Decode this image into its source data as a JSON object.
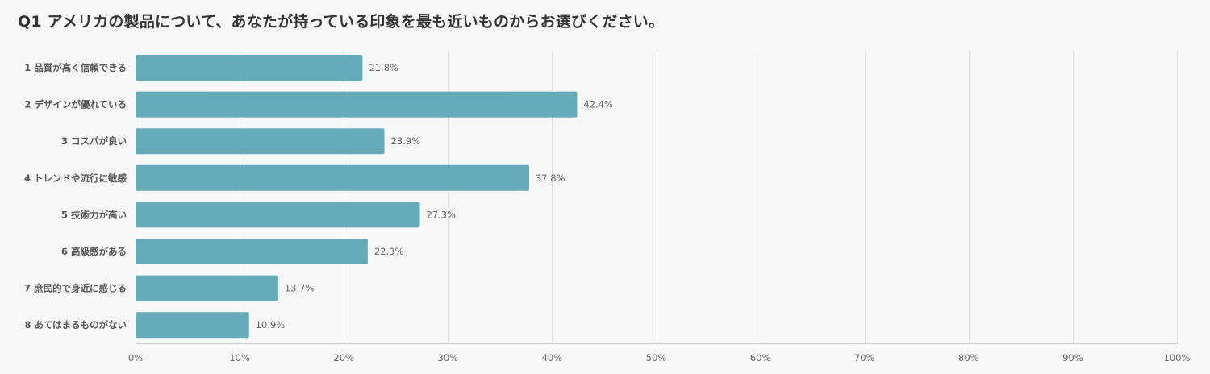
{
  "title": "Q1 アメリカの製品について、あなたが持っている印象を最も近いものからお選びください。",
  "colors": {
    "background": "#f8f8f8",
    "bar": "#65abba",
    "grid": "#e2e2e2",
    "axis": "#cccccc"
  },
  "chart_data": {
    "type": "bar",
    "orientation": "horizontal",
    "title": "Q1 アメリカの製品について、あなたが持っている印象を最も近いものからお選びください。",
    "categories": [
      "1 品質が高く信頼できる",
      "2 デザインが優れている",
      "3 コスパが良い",
      "4 トレンドや流行に敏感",
      "5 技術力が高い",
      "6 高級感がある",
      "7 庶民的で身近に感じる",
      "8 あてはまるものがない"
    ],
    "values": [
      21.8,
      42.4,
      23.9,
      37.8,
      27.3,
      22.3,
      13.7,
      10.9
    ],
    "value_labels": [
      "21.8%",
      "42.4%",
      "23.9%",
      "37.8%",
      "27.3%",
      "22.3%",
      "13.7%",
      "10.9%"
    ],
    "xlim": [
      0,
      100
    ],
    "x_ticks": [
      0,
      10,
      20,
      30,
      40,
      50,
      60,
      70,
      80,
      90,
      100
    ],
    "x_tick_labels": [
      "0%",
      "10%",
      "20%",
      "30%",
      "40%",
      "50%",
      "60%",
      "70%",
      "80%",
      "90%",
      "100%"
    ],
    "xlabel": "",
    "ylabel": "",
    "grid": true,
    "legend": false
  }
}
